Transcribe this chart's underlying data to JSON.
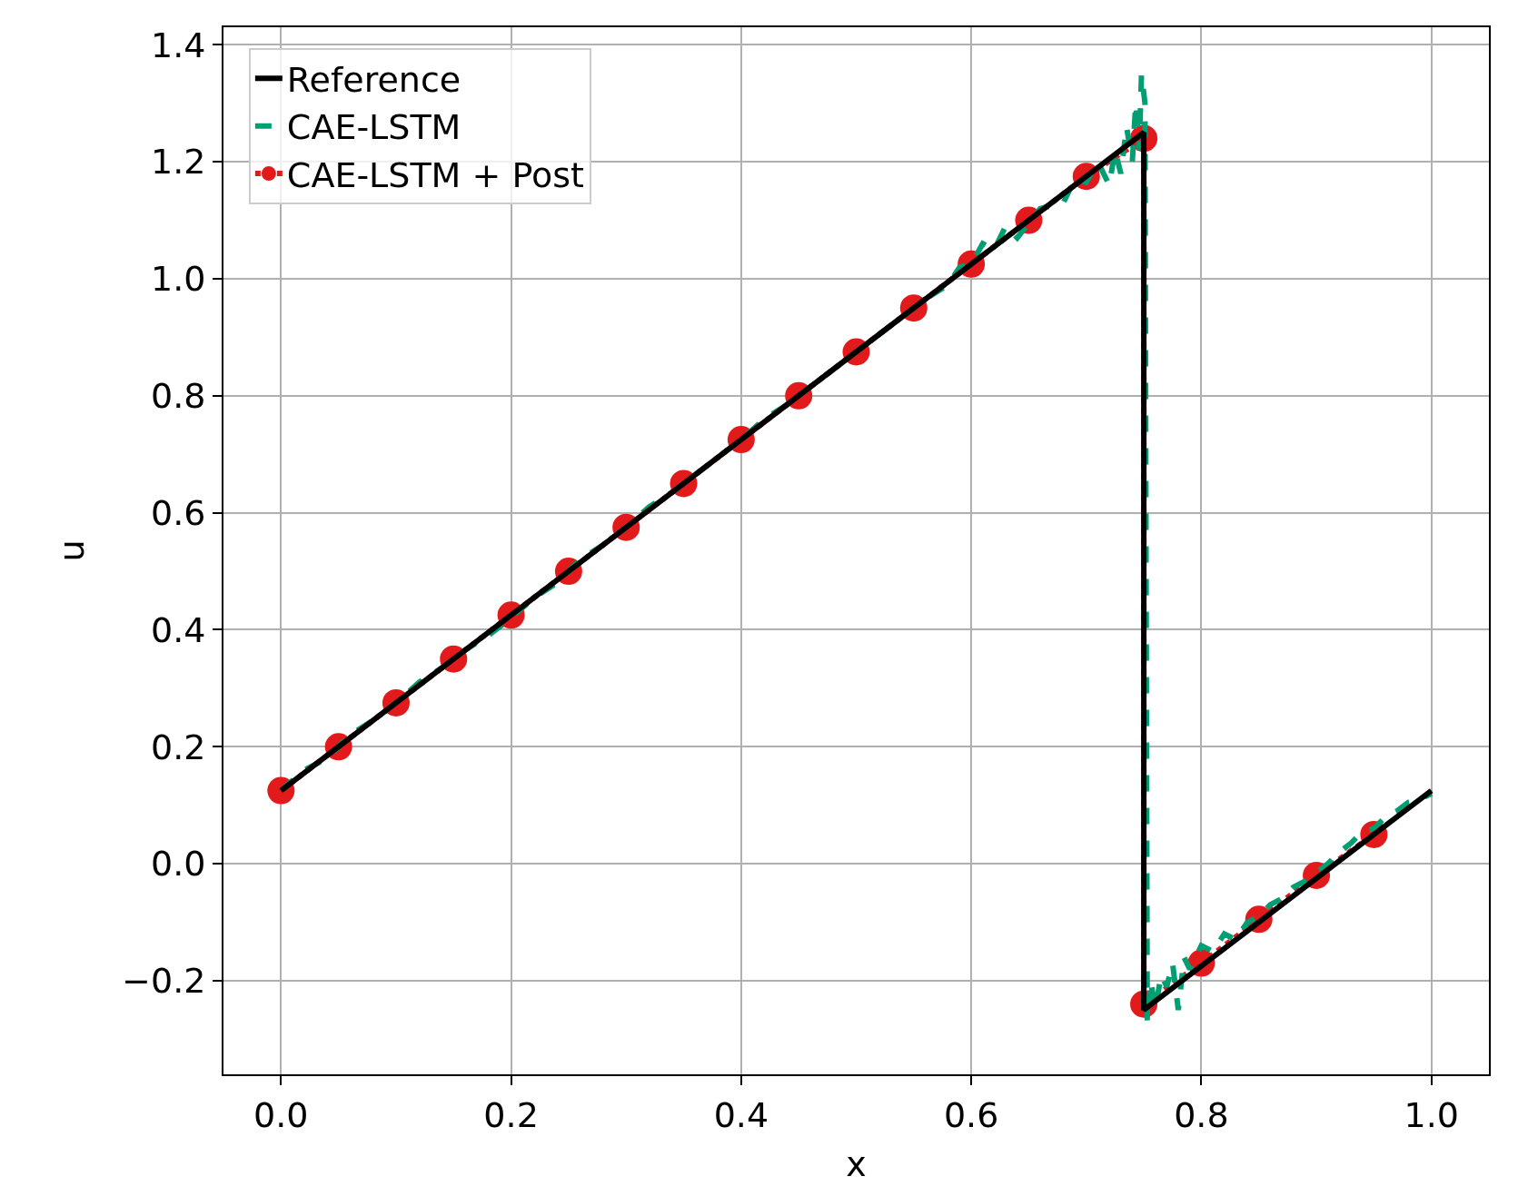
{
  "chart_data": {
    "type": "line",
    "xlabel": "x",
    "ylabel": "u",
    "xlim": [
      -0.05,
      1.05
    ],
    "ylim": [
      -0.36,
      1.43
    ],
    "xticks": [
      {
        "value": 0,
        "label": "0.0"
      },
      0.2,
      0.4,
      0.6,
      0.8,
      {
        "value": 1,
        "label": "1.0"
      }
    ],
    "yticks": [
      {
        "value": -0.2,
        "label": "−0.2"
      },
      {
        "value": 0,
        "label": "0.0"
      },
      0.2,
      0.4,
      0.6,
      0.8,
      {
        "value": 1,
        "label": "1.0"
      },
      1.2,
      1.4
    ],
    "grid": true,
    "legend": "top left",
    "series": [
      {
        "name": "Reference",
        "color": "#000000",
        "line_style": "solid",
        "marker": "none",
        "x": [
          0,
          0.75,
          0.75,
          1.0
        ],
        "values": [
          0.125,
          1.25,
          -0.25,
          0.125
        ]
      },
      {
        "name": "CAE-LSTM",
        "color": "#009e73",
        "line_style": "dashed",
        "marker": "none",
        "x": [
          0,
          0.02,
          0.04,
          0.06,
          0.08,
          0.1,
          0.12,
          0.14,
          0.16,
          0.18,
          0.2,
          0.22,
          0.24,
          0.26,
          0.28,
          0.3,
          0.32,
          0.34,
          0.36,
          0.38,
          0.4,
          0.42,
          0.44,
          0.46,
          0.48,
          0.5,
          0.52,
          0.54,
          0.56,
          0.58,
          0.59,
          0.6,
          0.61,
          0.62,
          0.63,
          0.64,
          0.66,
          0.68,
          0.69,
          0.7,
          0.71,
          0.72,
          0.725,
          0.73,
          0.735,
          0.74,
          0.743,
          0.746,
          0.748,
          0.751,
          0.752,
          0.753,
          0.756,
          0.76,
          0.765,
          0.77,
          0.775,
          0.78,
          0.785,
          0.79,
          0.8,
          0.81,
          0.82,
          0.83,
          0.84,
          0.85,
          0.86,
          0.87,
          0.88,
          0.89,
          0.9,
          0.91,
          0.92,
          0.93,
          0.94,
          0.95,
          0.96,
          0.97,
          0.98,
          0.99,
          1.0
        ],
        "values": [
          0.125,
          0.16,
          0.18,
          0.22,
          0.245,
          0.275,
          0.31,
          0.335,
          0.365,
          0.39,
          0.42,
          0.455,
          0.48,
          0.52,
          0.545,
          0.575,
          0.61,
          0.635,
          0.665,
          0.695,
          0.725,
          0.76,
          0.785,
          0.815,
          0.845,
          0.875,
          0.905,
          0.935,
          0.965,
          0.99,
          1.02,
          1.025,
          1.06,
          1.05,
          1.09,
          1.07,
          1.12,
          1.13,
          1.17,
          1.165,
          1.2,
          1.16,
          1.22,
          1.18,
          1.26,
          1.2,
          1.3,
          1.22,
          1.35,
          1.3,
          0.5,
          -0.27,
          -0.2,
          -0.25,
          -0.19,
          -0.21,
          -0.17,
          -0.25,
          -0.16,
          -0.18,
          -0.14,
          -0.15,
          -0.12,
          -0.13,
          -0.1,
          -0.09,
          -0.07,
          -0.06,
          -0.04,
          -0.03,
          -0.015,
          0.0,
          0.02,
          0.035,
          0.055,
          0.06,
          0.08,
          0.09,
          0.105,
          0.11,
          0.12
        ]
      },
      {
        "name": "CAE-LSTM + Post",
        "color": "#e31a1c",
        "line_style": "dotted",
        "marker": "circle",
        "x": [
          0,
          0.05,
          0.1,
          0.15,
          0.2,
          0.25,
          0.3,
          0.35,
          0.4,
          0.45,
          0.5,
          0.55,
          0.6,
          0.65,
          0.7,
          0.75,
          0.75,
          0.8,
          0.85,
          0.9,
          0.95
        ],
        "values": [
          0.125,
          0.2,
          0.275,
          0.35,
          0.425,
          0.5,
          0.575,
          0.65,
          0.725,
          0.8,
          0.875,
          0.95,
          1.025,
          1.1,
          1.175,
          1.24,
          -0.24,
          -0.17,
          -0.095,
          -0.02,
          0.05
        ]
      }
    ]
  }
}
